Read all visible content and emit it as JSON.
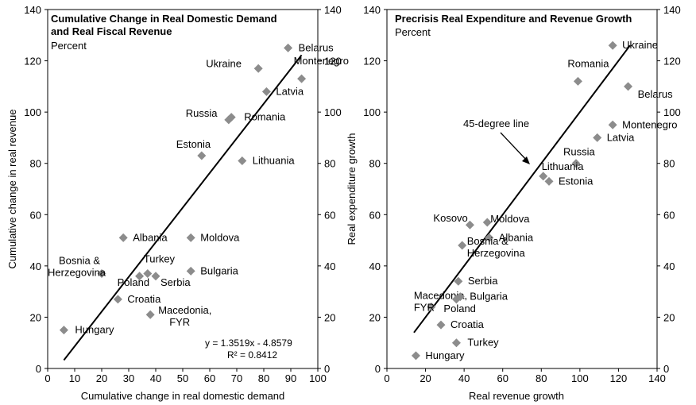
{
  "chart_data": [
    {
      "type": "scatter",
      "title": "Cumulative Change in Real Domestic Demand",
      "title_line2": "and Real Fiscal Revenue",
      "subtitle": "Percent",
      "xlabel": "Cumulative change in real domestic demand",
      "ylabel": "Cumulative change in real revenue",
      "xlim": [
        0,
        100
      ],
      "ylim": [
        0,
        140
      ],
      "xticks": [
        "0",
        "10",
        "20",
        "30",
        "40",
        "50",
        "60",
        "70",
        "80",
        "90",
        "100"
      ],
      "yticks": [
        "0",
        "20",
        "40",
        "60",
        "80",
        "100",
        "120",
        "140"
      ],
      "y2ticks": [
        "0",
        "20",
        "40",
        "60",
        "80",
        "100",
        "120",
        "140"
      ],
      "marker_color": "#8c8c8c",
      "points": [
        {
          "label": "Belarus",
          "x": 89,
          "y": 125
        },
        {
          "label": "Ukraine",
          "x": 78,
          "y": 117
        },
        {
          "label": "Montenegro",
          "x": 94,
          "y": 113
        },
        {
          "label": "Latvia",
          "x": 81,
          "y": 108
        },
        {
          "label": "Russia",
          "x": 67,
          "y": 97
        },
        {
          "label": "Romania",
          "x": 68,
          "y": 98
        },
        {
          "label": "Estonia",
          "x": 57,
          "y": 83
        },
        {
          "label": "Lithuania",
          "x": 72,
          "y": 81
        },
        {
          "label": "Albania",
          "x": 28,
          "y": 51
        },
        {
          "label": "Moldova",
          "x": 53,
          "y": 51
        },
        {
          "label": "Bosnia &",
          "label2": "Herzegovina",
          "x": 20,
          "y": 37
        },
        {
          "label": "Turkey",
          "x": 37,
          "y": 37
        },
        {
          "label": "Poland",
          "x": 34,
          "y": 36
        },
        {
          "label": "Serbia",
          "x": 40,
          "y": 36
        },
        {
          "label": "Bulgaria",
          "x": 53,
          "y": 38
        },
        {
          "label": "Croatia",
          "x": 26,
          "y": 27
        },
        {
          "label": "Macedonia,",
          "label2": "FYR",
          "x": 38,
          "y": 21
        },
        {
          "label": "Hungary",
          "x": 6,
          "y": 15
        }
      ],
      "trendline": {
        "slope": 1.3519,
        "intercept": -4.8579,
        "x_from": 6,
        "x_to": 94
      },
      "equation": "y = 1.3519x - 4.8579",
      "r_squared": "R² = 0.8412"
    },
    {
      "type": "scatter",
      "title": "Precrisis Real Expenditure and Revenue Growth",
      "subtitle": "Percent",
      "xlabel": "Real revenue growth",
      "ylabel": "Real expenditure growth",
      "xlim": [
        0,
        140
      ],
      "ylim": [
        0,
        140
      ],
      "xticks": [
        "0",
        "20",
        "40",
        "60",
        "80",
        "100",
        "120",
        "140"
      ],
      "yticks": [
        "0",
        "20",
        "40",
        "60",
        "80",
        "100",
        "120",
        "140"
      ],
      "y2ticks": [
        "0",
        "20",
        "40",
        "60",
        "80",
        "100",
        "120",
        "140"
      ],
      "marker_color": "#8c8c8c",
      "points": [
        {
          "label": "Ukraine",
          "x": 117,
          "y": 126
        },
        {
          "label": "Romania",
          "x": 99,
          "y": 112
        },
        {
          "label": "Belarus",
          "x": 125,
          "y": 110
        },
        {
          "label": "Montenegro",
          "x": 117,
          "y": 95
        },
        {
          "label": "Latvia",
          "x": 109,
          "y": 90
        },
        {
          "label": "Russia",
          "x": 98,
          "y": 80
        },
        {
          "label": "Lithuania",
          "x": 81,
          "y": 75
        },
        {
          "label": "Estonia",
          "x": 84,
          "y": 73
        },
        {
          "label": "Kosovo",
          "x": 43,
          "y": 56
        },
        {
          "label": "Moldova",
          "x": 52,
          "y": 57
        },
        {
          "label": "Albania",
          "x": 53,
          "y": 51
        },
        {
          "label": "Bosnia &",
          "label2": "Herzegovina",
          "x": 39,
          "y": 48
        },
        {
          "label": "Serbia",
          "x": 37,
          "y": 34
        },
        {
          "label": "Macedonia,",
          "label2": "FYR",
          "x": 23,
          "y": 24
        },
        {
          "label": "Bulgaria",
          "x": 38,
          "y": 28
        },
        {
          "label": "Poland",
          "x": 36,
          "y": 27
        },
        {
          "label": "Croatia",
          "x": 28,
          "y": 17
        },
        {
          "label": "Turkey",
          "x": 36,
          "y": 10
        },
        {
          "label": "Hungary",
          "x": 15,
          "y": 5
        }
      ],
      "reference_line": {
        "x_from": 14,
        "y_from": 14,
        "x_to": 126,
        "y_to": 126
      },
      "annotation": "45-degree line"
    }
  ]
}
